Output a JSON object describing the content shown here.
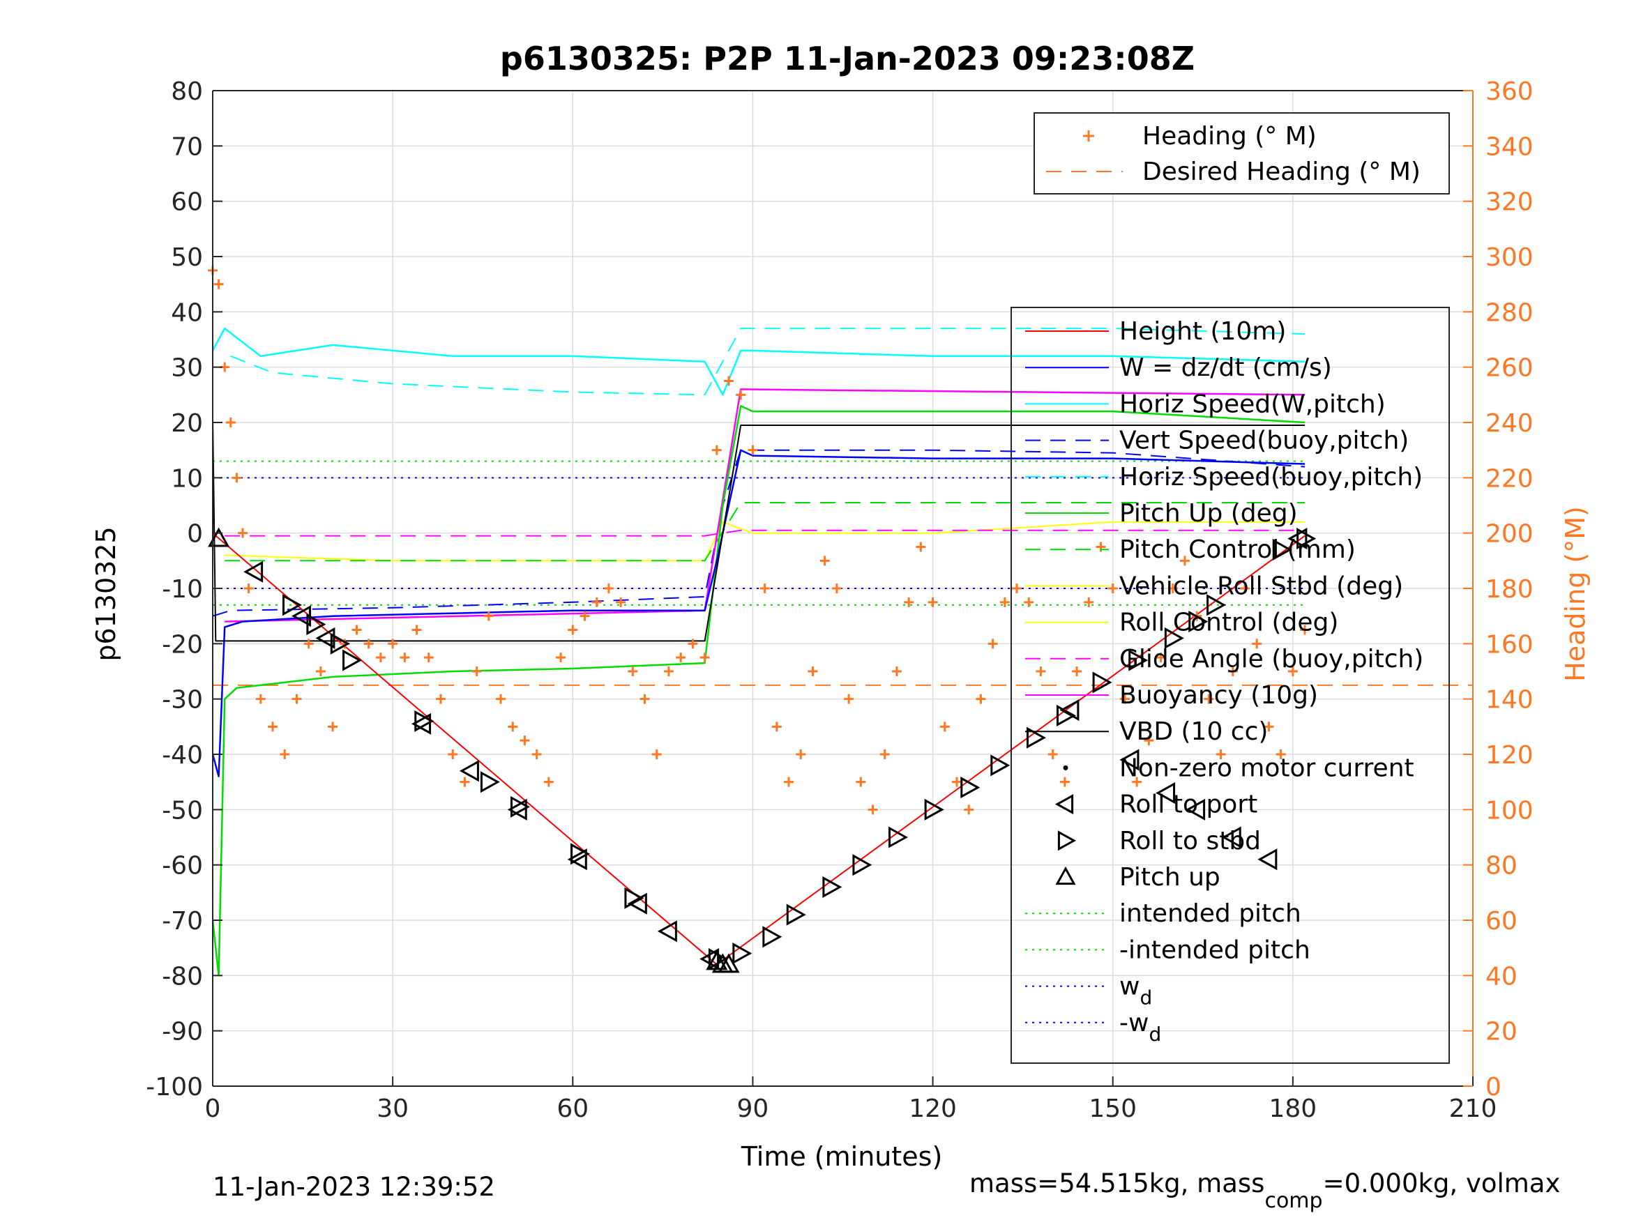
{
  "chart_data": {
    "type": "line",
    "title": "p6130325: P2P 11-Jan-2023 09:23:08Z",
    "xlabel": "Time (minutes)",
    "ylabel": "p6130325",
    "y2label": "Heading (°M)",
    "xlim": [
      0,
      210
    ],
    "ylim": [
      -100,
      80
    ],
    "y2lim": [
      0,
      360
    ],
    "xticks": [
      "0",
      "30",
      "60",
      "90",
      "120",
      "150",
      "180",
      "210"
    ],
    "yticks": [
      "-100",
      "-90",
      "-80",
      "-70",
      "-60",
      "-50",
      "-40",
      "-30",
      "-20",
      "-10",
      "0",
      "10",
      "20",
      "30",
      "40",
      "50",
      "60",
      "70",
      "80"
    ],
    "y2ticks": [
      "0",
      "20",
      "40",
      "60",
      "80",
      "100",
      "120",
      "140",
      "160",
      "180",
      "200",
      "220",
      "240",
      "260",
      "280",
      "300",
      "320",
      "340",
      "360"
    ],
    "grid": true,
    "colors": {
      "height": "#ff0000",
      "w": "#0000ff",
      "horiz_speed": "#00ffff",
      "pitch": "#00dd00",
      "roll": "#ffff00",
      "magenta": "#ff00ff",
      "heading": "#ff7722",
      "vbd": "#000000"
    },
    "legend_heading": {
      "placement": "top-right",
      "entries": [
        "Heading (° M)",
        "Desired Heading (° M)"
      ]
    },
    "legend_main": {
      "placement": "right",
      "entries": [
        "Height (10m)",
        "W = dz/dt (cm/s)",
        "Horiz Speed(W,pitch)",
        "Vert Speed(buoy,pitch)",
        "Horiz Speed(buoy,pitch)",
        "Pitch Up (deg)",
        "Pitch Control (mm)",
        "Vehicle Roll Stbd (deg)",
        "Roll Control (deg)",
        "Glide Angle (buoy,pitch)",
        "Buoyancy (10g)",
        "VBD (10 cc)",
        "Non-zero motor current",
        "Roll to port",
        "Roll to stbd",
        "Pitch up",
        "intended pitch",
        "-intended pitch",
        "w",
        "-w"
      ],
      "subscript": "d"
    },
    "series": [
      {
        "name": "Height (10m)",
        "x": [
          0,
          84,
          182
        ],
        "y": [
          0,
          -78,
          -0.5
        ]
      },
      {
        "name": "W = dz/dt (cm/s)",
        "x": [
          0,
          1,
          2,
          5,
          20,
          40,
          60,
          82,
          84,
          88,
          90,
          120,
          150,
          182
        ],
        "y": [
          -40,
          -44,
          -17,
          -16,
          -15,
          -14.5,
          -14,
          -14,
          -5,
          15,
          14,
          13.5,
          13.5,
          12.5
        ]
      },
      {
        "name": "Horiz Speed(W,pitch)",
        "x": [
          0,
          2,
          8,
          20,
          40,
          60,
          82,
          85,
          88,
          90,
          120,
          150,
          182
        ],
        "y": [
          33,
          37,
          32,
          34,
          32,
          32,
          31,
          25,
          33,
          33,
          32,
          32,
          31
        ]
      },
      {
        "name": "Vert Speed(buoy,pitch)",
        "x": [
          0,
          3,
          30,
          60,
          82,
          85,
          88,
          120,
          150,
          182
        ],
        "y": [
          -15,
          -14,
          -13.5,
          -12.5,
          -11.5,
          5,
          15,
          15,
          14.5,
          12
        ]
      },
      {
        "name": "Horiz Speed(buoy,pitch)",
        "x": [
          3,
          10,
          30,
          60,
          82,
          88,
          120,
          150,
          182
        ],
        "y": [
          32,
          29,
          27,
          25.5,
          25,
          37,
          37,
          37,
          36
        ]
      },
      {
        "name": "Pitch Up (deg)",
        "x": [
          0,
          1,
          2,
          4,
          20,
          40,
          60,
          82,
          85,
          88,
          90,
          120,
          150,
          182
        ],
        "y": [
          -70,
          -80,
          -30,
          -28,
          -26,
          -25,
          -24.5,
          -23.5,
          5,
          23,
          22,
          22,
          22,
          20
        ]
      },
      {
        "name": "Pitch Control (mm)",
        "x": [
          2,
          82,
          88,
          182
        ],
        "y": [
          -5,
          -5,
          5.5,
          5.5
        ]
      },
      {
        "name": "Vehicle Roll Stbd (deg)",
        "x": [
          2,
          30,
          60,
          82,
          85,
          90,
          120,
          150,
          182
        ],
        "y": [
          -4,
          -5,
          -5,
          -5,
          2,
          0,
          0,
          2,
          2
        ]
      },
      {
        "name": "Glide Angle (buoy,pitch)",
        "x": [
          2,
          82,
          88,
          182
        ],
        "y": [
          -0.5,
          -0.5,
          0.5,
          0.5
        ]
      },
      {
        "name": "Buoyancy (10g)",
        "x": [
          2,
          82,
          88,
          182
        ],
        "y": [
          -16,
          -14,
          26,
          25
        ]
      },
      {
        "name": "VBD (10 cc)",
        "x": [
          0,
          0.5,
          82,
          88,
          182
        ],
        "y": [
          21,
          -19.5,
          -19.5,
          19.5,
          19.5
        ]
      },
      {
        "name": "intended pitch",
        "x": [
          0,
          182
        ],
        "y": [
          13,
          13
        ]
      },
      {
        "name": "-intended pitch",
        "x": [
          0,
          182
        ],
        "y": [
          -13,
          -13
        ]
      },
      {
        "name": "w",
        "x": [
          0,
          182
        ],
        "y": [
          10,
          10
        ]
      },
      {
        "name": "-w",
        "x": [
          0,
          182
        ],
        "y": [
          -10,
          -10
        ]
      },
      {
        "name": "Desired Heading (° M)",
        "x": [
          0,
          210
        ],
        "y2": [
          145,
          145
        ]
      }
    ],
    "heading_points": {
      "x": [
        0,
        1,
        2,
        3,
        4,
        5,
        6,
        8,
        10,
        12,
        14,
        16,
        18,
        20,
        22,
        24,
        26,
        28,
        30,
        32,
        34,
        36,
        38,
        40,
        42,
        44,
        46,
        48,
        50,
        52,
        54,
        56,
        58,
        60,
        62,
        64,
        66,
        68,
        70,
        72,
        74,
        76,
        78,
        80,
        82,
        84,
        86,
        88,
        90,
        92,
        94,
        96,
        98,
        100,
        102,
        104,
        106,
        108,
        110,
        112,
        114,
        116,
        118,
        120,
        122,
        124,
        126,
        128,
        130,
        132,
        134,
        136,
        138,
        140,
        142,
        144,
        146,
        148,
        150,
        152,
        154,
        156,
        158,
        160,
        162,
        164,
        166,
        168,
        170,
        172,
        174,
        176,
        178,
        180,
        182
      ],
      "y2": [
        295,
        290,
        260,
        240,
        220,
        200,
        180,
        140,
        130,
        120,
        140,
        160,
        150,
        130,
        160,
        165,
        160,
        155,
        160,
        155,
        165,
        155,
        140,
        120,
        110,
        150,
        170,
        140,
        130,
        125,
        120,
        110,
        155,
        165,
        170,
        175,
        180,
        175,
        150,
        140,
        120,
        150,
        155,
        160,
        155,
        230,
        255,
        250,
        230,
        180,
        130,
        110,
        120,
        150,
        190,
        180,
        140,
        110,
        100,
        120,
        150,
        175,
        195,
        175,
        130,
        110,
        100,
        140,
        160,
        175,
        180,
        175,
        150,
        120,
        110,
        150,
        175,
        195,
        180,
        140,
        110,
        125,
        155,
        180,
        190,
        170,
        140,
        120,
        150,
        180,
        160,
        130,
        120,
        150,
        165
      ]
    },
    "markers": {
      "pitch_up": [
        [
          1,
          -1
        ],
        [
          84,
          -77.5
        ],
        [
          85,
          -78
        ],
        [
          86,
          -78
        ]
      ],
      "roll_port": [
        [
          7,
          -7
        ],
        [
          15,
          -15
        ],
        [
          19,
          -19
        ],
        [
          35,
          -34.5
        ],
        [
          43,
          -43
        ],
        [
          51,
          -50
        ],
        [
          61,
          -59
        ],
        [
          71,
          -67
        ],
        [
          76,
          -72
        ],
        [
          83,
          -77
        ],
        [
          143,
          -32
        ],
        [
          153,
          -41
        ],
        [
          159,
          -47
        ],
        [
          164,
          -50
        ],
        [
          170,
          -55
        ],
        [
          176,
          -59
        ],
        [
          181,
          -1
        ]
      ],
      "roll_stbd": [
        [
          13,
          -13
        ],
        [
          17,
          -16.5
        ],
        [
          21,
          -20
        ],
        [
          23,
          -23
        ],
        [
          35,
          -34
        ],
        [
          46,
          -45
        ],
        [
          51,
          -49.5
        ],
        [
          61,
          -58
        ],
        [
          70,
          -66
        ],
        [
          84,
          -77
        ],
        [
          88,
          -76
        ],
        [
          93,
          -73
        ],
        [
          97,
          -69
        ],
        [
          103,
          -64
        ],
        [
          108,
          -60
        ],
        [
          114,
          -55
        ],
        [
          120,
          -50
        ],
        [
          126,
          -46
        ],
        [
          131,
          -42
        ],
        [
          137,
          -37
        ],
        [
          142,
          -33
        ],
        [
          148,
          -27
        ],
        [
          154,
          -23
        ],
        [
          160,
          -19
        ],
        [
          164,
          -16
        ],
        [
          167,
          -13
        ],
        [
          178,
          -3
        ],
        [
          182,
          -1
        ]
      ]
    }
  },
  "footer": {
    "timestamp": "11-Jan-2023 12:39:52",
    "mass_prefix": "mass=54.515kg, mass",
    "mass_sub": "comp",
    "mass_suffix": "=0.000kg, volmax"
  }
}
